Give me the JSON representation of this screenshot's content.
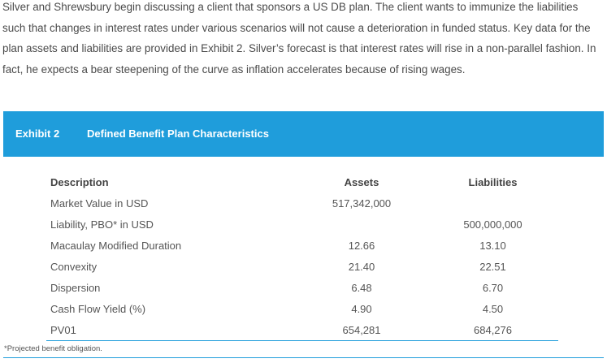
{
  "intro_paragraph": "Silver and Shrewsbury begin discussing a client that sponsors a US DB plan. The client wants to immunize the liabilities such that changes in interest rates under various scenarios will not cause a deterioration in funded status. Key data for the plan assets and liabilities are provided in Exhibit 2. Silver’s forecast is that interest rates will rise in a non-parallel fashion. In fact, he expects a bear steepening of the curve as inflation accelerates because of rising wages.",
  "exhibit": {
    "number": "Exhibit 2",
    "title": "Defined Benefit Plan Characteristics",
    "bar_color": "#1f9ddb"
  },
  "table": {
    "headers": [
      "Description",
      "Assets",
      "Liabilities"
    ],
    "rows": [
      [
        "Market Value in USD",
        "517,342,000",
        ""
      ],
      [
        "Liability, PBO* in USD",
        "",
        "500,000,000"
      ],
      [
        "Macaulay Modified Duration",
        "12.66",
        "13.10"
      ],
      [
        "Convexity",
        "21.40",
        "22.51"
      ],
      [
        "Dispersion",
        "6.48",
        "6.70"
      ],
      [
        "Cash Flow Yield (%)",
        "4.90",
        "4.50"
      ],
      [
        "PV01",
        "654,281",
        "684,276"
      ]
    ]
  },
  "footnote": "*Projected benefit obligation."
}
